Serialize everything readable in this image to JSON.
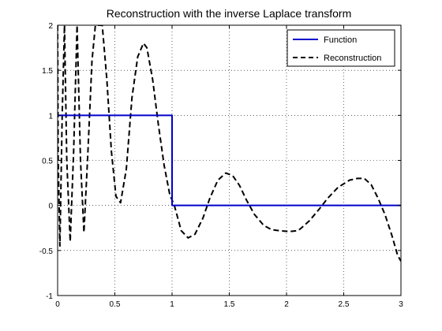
{
  "chart_data": {
    "type": "line",
    "title": "Reconstruction with the inverse Laplace transform",
    "xlabel": "",
    "ylabel": "",
    "xlim": [
      0,
      3
    ],
    "ylim": [
      -1,
      2
    ],
    "grid": true,
    "legend_position": "top-right",
    "x_ticks": [
      0,
      0.5,
      1,
      1.5,
      2,
      2.5,
      3
    ],
    "x_tick_labels": [
      "0",
      "0.5",
      "1",
      "1.5",
      "2",
      "2.5",
      "3"
    ],
    "y_ticks": [
      -1,
      -0.5,
      0,
      0.5,
      1,
      1.5,
      2
    ],
    "y_tick_labels": [
      "-1",
      "-0.5",
      "0",
      "0.5",
      "1",
      "1.5",
      "2"
    ],
    "series": [
      {
        "name": "Function",
        "color": "#0000cc",
        "style": "solid",
        "x": [
          0,
          1,
          1,
          3
        ],
        "y": [
          1,
          1,
          0,
          0
        ]
      },
      {
        "name": "Reconstruction",
        "color": "#000000",
        "style": "dashed",
        "x": [
          0,
          0.005,
          0.02,
          0.04,
          0.06,
          0.08,
          0.11,
          0.14,
          0.17,
          0.2,
          0.23,
          0.265,
          0.3,
          0.33,
          0.36,
          0.39,
          0.43,
          0.47,
          0.51,
          0.55,
          0.6,
          0.65,
          0.7,
          0.75,
          0.78,
          0.83,
          0.88,
          0.93,
          0.98,
          1.02,
          1.08,
          1.14,
          1.2,
          1.27,
          1.33,
          1.4,
          1.47,
          1.53,
          1.59,
          1.65,
          1.72,
          1.8,
          1.87,
          1.94,
          2.02,
          2.1,
          2.13,
          2.2,
          2.28,
          2.36,
          2.45,
          2.55,
          2.62,
          2.68,
          2.74,
          2.8,
          2.86,
          2.92,
          2.97,
          3.0
        ],
        "y": [
          2.0,
          0.5,
          -0.45,
          1.0,
          2.0,
          0.5,
          -0.4,
          0.6,
          2.0,
          0.5,
          -0.3,
          0.6,
          1.6,
          2.0,
          2.0,
          2.0,
          1.4,
          0.6,
          0.1,
          0.03,
          0.4,
          1.2,
          1.65,
          1.8,
          1.75,
          1.4,
          0.9,
          0.45,
          0.12,
          0.0,
          -0.28,
          -0.36,
          -0.32,
          -0.14,
          0.08,
          0.28,
          0.36,
          0.33,
          0.22,
          0.06,
          -0.1,
          -0.22,
          -0.27,
          -0.28,
          -0.29,
          -0.28,
          -0.25,
          -0.17,
          -0.05,
          0.08,
          0.2,
          0.28,
          0.3,
          0.3,
          0.23,
          0.08,
          -0.1,
          -0.33,
          -0.55,
          -0.62
        ]
      }
    ]
  }
}
